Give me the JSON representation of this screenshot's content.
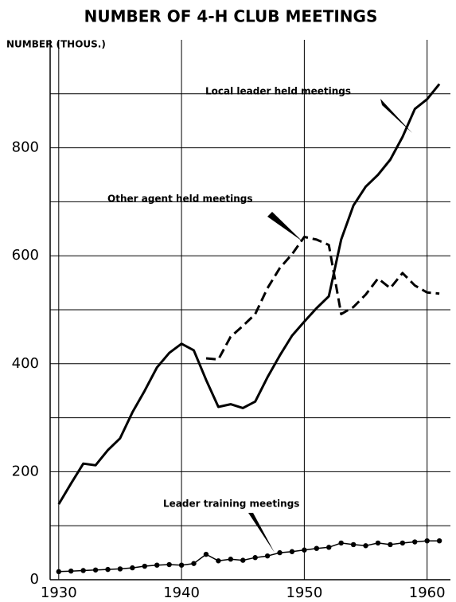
{
  "chart_data": {
    "type": "line",
    "title": "NUMBER OF 4-H CLUB MEETINGS",
    "y_axis_label": "NUMBER (THOUS.)",
    "x": [
      1930,
      1931,
      1932,
      1933,
      1934,
      1935,
      1936,
      1937,
      1938,
      1939,
      1940,
      1941,
      1942,
      1943,
      1944,
      1945,
      1946,
      1947,
      1948,
      1949,
      1950,
      1951,
      1952,
      1953,
      1954,
      1955,
      1956,
      1957,
      1958,
      1959,
      1960,
      1961
    ],
    "series": [
      {
        "name": "Local leader held meetings",
        "color": "#000000",
        "dash": false,
        "markers": false,
        "values": [
          140,
          178,
          215,
          212,
          240,
          262,
          310,
          350,
          393,
          420,
          437,
          425,
          370,
          320,
          325,
          318,
          330,
          375,
          415,
          452,
          478,
          503,
          525,
          630,
          693,
          728,
          750,
          778,
          820,
          872,
          890,
          918
        ]
      },
      {
        "name": "Other agent held meetings",
        "color": "#000000",
        "dash": true,
        "markers": false,
        "values": [
          null,
          null,
          null,
          null,
          null,
          null,
          null,
          null,
          null,
          null,
          null,
          null,
          410,
          408,
          450,
          470,
          492,
          540,
          577,
          603,
          635,
          630,
          620,
          492,
          505,
          528,
          558,
          540,
          568,
          545,
          532,
          530
        ]
      },
      {
        "name": "Leader training meetings",
        "color": "#000000",
        "dash": false,
        "markers": true,
        "values": [
          15,
          16,
          17,
          18,
          19,
          20,
          22,
          25,
          27,
          28,
          27,
          30,
          47,
          35,
          38,
          36,
          41,
          44,
          50,
          52,
          55,
          58,
          60,
          68,
          65,
          63,
          68,
          65,
          68,
          70,
          72,
          72
        ]
      }
    ],
    "xlim": [
      1929.3,
      1961.9
    ],
    "xticks": [
      1930,
      1940,
      1950,
      1960
    ],
    "ylim": [
      0,
      1000
    ],
    "yticks": [
      0,
      200,
      400,
      600,
      800
    ],
    "ygrid": [
      100,
      300,
      500,
      700,
      900
    ],
    "grid": true
  }
}
